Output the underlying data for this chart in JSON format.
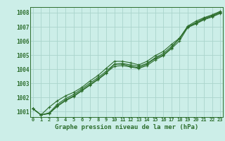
{
  "title": "Graphe pression niveau de la mer (hPa)",
  "background_color": "#cceee8",
  "grid_color": "#aad4cc",
  "line_color": "#2d6e2d",
  "text_color": "#2d6e2d",
  "ylim": [
    1000.6,
    1008.4
  ],
  "yticks": [
    1001,
    1002,
    1003,
    1004,
    1005,
    1006,
    1007,
    1008
  ],
  "xlim": [
    -0.3,
    23.3
  ],
  "series": [
    [
      1001.2,
      1000.75,
      1000.85,
      1001.35,
      1001.75,
      1002.05,
      1002.45,
      1002.85,
      1003.25,
      1003.7,
      1004.35,
      1004.35,
      1004.2,
      1004.1,
      1004.35,
      1004.75,
      1005.0,
      1005.5,
      1006.2,
      1007.0,
      1007.25,
      1007.55,
      1007.75,
      1008.0
    ],
    [
      1001.2,
      1000.75,
      1000.85,
      1001.4,
      1001.8,
      1002.1,
      1002.5,
      1002.9,
      1003.3,
      1003.75,
      1004.2,
      1004.25,
      1004.15,
      1004.05,
      1004.25,
      1004.65,
      1004.95,
      1005.45,
      1006.0,
      1006.95,
      1007.2,
      1007.5,
      1007.7,
      1007.95
    ],
    [
      1001.2,
      1000.75,
      1000.9,
      1001.5,
      1001.9,
      1002.2,
      1002.6,
      1003.0,
      1003.4,
      1003.85,
      1004.35,
      1004.4,
      1004.3,
      1004.2,
      1004.4,
      1004.8,
      1005.1,
      1005.6,
      1006.15,
      1007.0,
      1007.3,
      1007.6,
      1007.8,
      1008.05
    ],
    [
      1001.2,
      1000.75,
      1001.3,
      1001.75,
      1002.1,
      1002.35,
      1002.7,
      1003.15,
      1003.55,
      1004.05,
      1004.55,
      1004.55,
      1004.45,
      1004.3,
      1004.55,
      1004.95,
      1005.25,
      1005.75,
      1006.2,
      1007.05,
      1007.4,
      1007.65,
      1007.85,
      1008.1
    ]
  ]
}
